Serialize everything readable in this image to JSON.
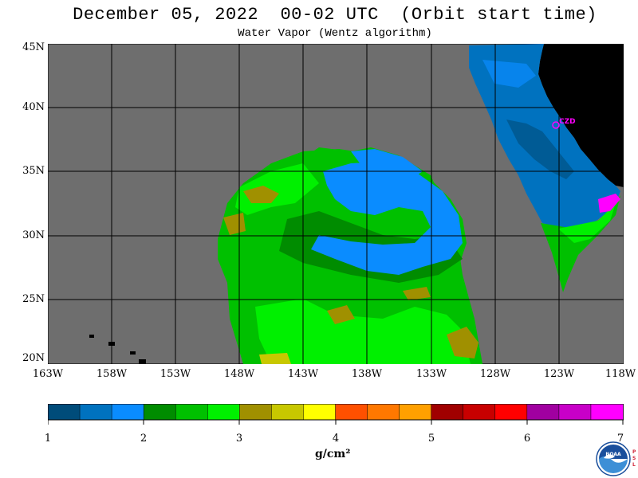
{
  "title": "December 05, 2022  00-02 UTC  (Orbit start time)",
  "subtitle": "Water Vapor (Wentz algorithm)",
  "lat_labels": [
    "45N",
    "40N",
    "35N",
    "30N",
    "25N",
    "20N"
  ],
  "lon_labels": [
    "163W",
    "158W",
    "153W",
    "148W",
    "143W",
    "138W",
    "133W",
    "128W",
    "123W",
    "118W"
  ],
  "station_label": "CZD",
  "colorbar": {
    "ticks": [
      "1",
      "2",
      "3",
      "4",
      "5",
      "6",
      "7"
    ],
    "unit": "g/cm²",
    "colors": [
      "#004c7a",
      "#0072bf",
      "#0a8cff",
      "#008c00",
      "#00c000",
      "#00f000",
      "#a09000",
      "#c8c800",
      "#ffff00",
      "#ff5000",
      "#ff7800",
      "#ffa000",
      "#a00000",
      "#c80000",
      "#ff0000",
      "#a000a0",
      "#c800c8",
      "#ff00ff"
    ]
  },
  "colors": {
    "no_data": "#6e6e6e",
    "land": "#000000",
    "station": "#ff00ff"
  },
  "logo": {
    "text": "NOAA",
    "side_letters": "PSL"
  }
}
